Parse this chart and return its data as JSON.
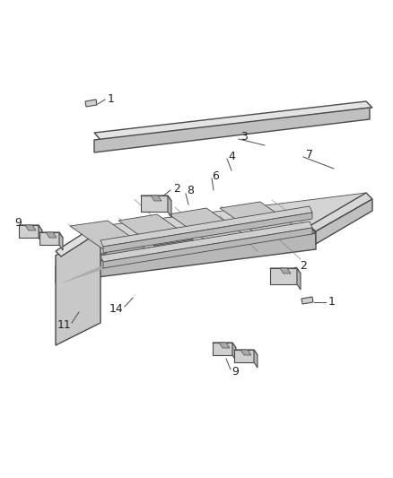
{
  "bg_color": "#ffffff",
  "lc": "#4a4a4a",
  "fc_light": "#e8e8e8",
  "fc_mid": "#d0d0d0",
  "fc_dark": "#b8b8b8",
  "fc_rail_top": "#e0e0e0",
  "fc_rail_side": "#c0c0c0",
  "fc_floor": "#d8d8d8",
  "fc_inner": "#c8c8c8",
  "label_fs": 9,
  "lw_main": 1.0,
  "lw_thin": 0.6
}
